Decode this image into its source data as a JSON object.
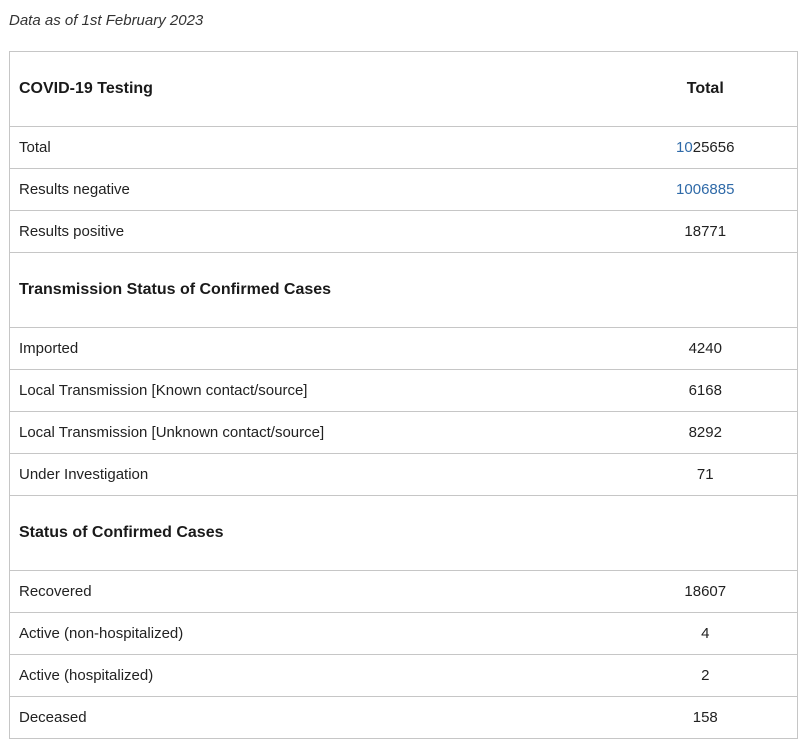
{
  "as_of": "Data as of 1st February 2023",
  "table": {
    "header": {
      "label": "COVID-19 Testing",
      "total": "Total"
    },
    "testing": [
      {
        "label": "Total",
        "value": "1025656",
        "value_prefix": "10",
        "value_rest": "25656"
      },
      {
        "label": "Results negative",
        "value": "1006885"
      },
      {
        "label": "Results positive",
        "value": "18771"
      }
    ],
    "transmission": {
      "title": "Transmission Status of Confirmed Cases",
      "rows": [
        {
          "label": "Imported",
          "value": "4240"
        },
        {
          "label": "Local Transmission [Known contact/source]",
          "value": "6168"
        },
        {
          "label": "Local Transmission [Unknown contact/source]",
          "value": "8292"
        },
        {
          "label": "Under Investigation",
          "value": "71"
        }
      ]
    },
    "status": {
      "title": "Status of Confirmed Cases",
      "rows": [
        {
          "label": "Recovered",
          "value": "18607"
        },
        {
          "label": "Active (non-hospitalized)",
          "value": "4"
        },
        {
          "label": "Active (hospitalized)",
          "value": "2"
        },
        {
          "label": "Deceased",
          "value": "158"
        }
      ]
    }
  },
  "colors": {
    "link": "#2f6aa8",
    "border": "#c6c6c6"
  }
}
